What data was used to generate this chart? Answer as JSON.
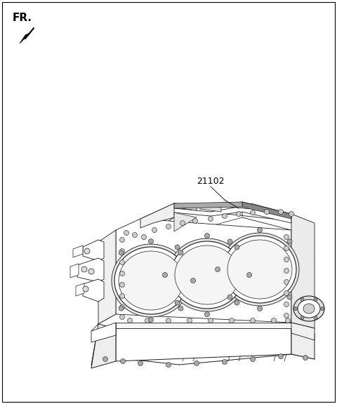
{
  "background_color": "#ffffff",
  "fr_label": "FR.",
  "part_number": "21102",
  "fig_width": 4.8,
  "fig_height": 5.76,
  "dpi": 100,
  "line_color": "#1a1a1a",
  "line_width": 0.6
}
